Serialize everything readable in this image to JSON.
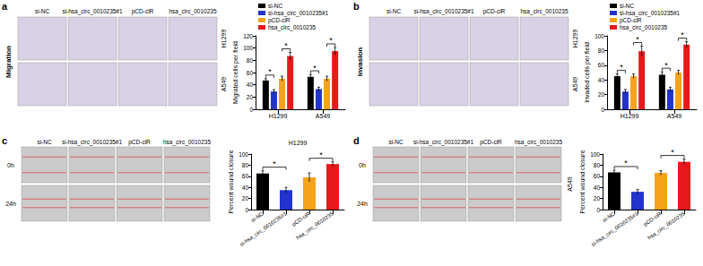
{
  "chart_data": [
    {
      "type": "bar",
      "y_label": "Migrated cells per field",
      "categories": [
        "H1299",
        "A549"
      ],
      "series": [
        {
          "name": "si-NC",
          "color": "#000000",
          "values": [
            47,
            53
          ],
          "errors": [
            3,
            4
          ]
        },
        {
          "name": "si-hsa_circ_0010235#1",
          "color": "#2233cc",
          "values": [
            29,
            33
          ],
          "errors": [
            3,
            3
          ]
        },
        {
          "name": "pCD-ciR",
          "color": "#f5a31a",
          "values": [
            50,
            50
          ],
          "errors": [
            4,
            4
          ]
        },
        {
          "name": "hsa_circ_0010235",
          "color": "#e8191b",
          "values": [
            87,
            95
          ],
          "errors": [
            6,
            6
          ]
        }
      ],
      "ylim": [
        0,
        120
      ],
      "yticks": [
        0,
        20,
        40,
        60,
        80,
        100,
        120
      ],
      "legend": "top-left",
      "significance": [
        {
          "category": 0,
          "between": [
            0,
            1
          ],
          "label": "*"
        },
        {
          "category": 0,
          "between": [
            2,
            3
          ],
          "label": "*"
        },
        {
          "category": 1,
          "between": [
            0,
            1
          ],
          "label": "*"
        },
        {
          "category": 1,
          "between": [
            2,
            3
          ],
          "label": "*"
        }
      ]
    },
    {
      "type": "bar",
      "y_label": "Invaded cells per field",
      "categories": [
        "H1299",
        "A549"
      ],
      "series": [
        {
          "name": "si-NC",
          "color": "#000000",
          "values": [
            45,
            47
          ],
          "errors": [
            3,
            4
          ]
        },
        {
          "name": "si-hsa_circ_0010235#1",
          "color": "#2233cc",
          "values": [
            24,
            27
          ],
          "errors": [
            3,
            3
          ]
        },
        {
          "name": "pCD-ciR",
          "color": "#f5a31a",
          "values": [
            45,
            50
          ],
          "errors": [
            3,
            3
          ]
        },
        {
          "name": "hsa_circ_0010235",
          "color": "#e8191b",
          "values": [
            79,
            88
          ],
          "errors": [
            7,
            4
          ]
        }
      ],
      "ylim": [
        0,
        100
      ],
      "yticks": [
        0,
        20,
        40,
        60,
        80,
        100
      ],
      "legend": "top-left",
      "significance": [
        {
          "category": 0,
          "between": [
            0,
            1
          ],
          "label": "*"
        },
        {
          "category": 0,
          "between": [
            2,
            3
          ],
          "label": "*"
        },
        {
          "category": 1,
          "between": [
            0,
            1
          ],
          "label": "*"
        },
        {
          "category": 1,
          "between": [
            2,
            3
          ],
          "label": "*"
        }
      ]
    },
    {
      "type": "bar",
      "title": "H1299",
      "y_label": "Percent wound closure",
      "categories": [
        "si-NC",
        "si-hsa_circ_0010235#1",
        "pCD-ciR",
        "hsa_circ_0010235"
      ],
      "values": [
        65,
        35,
        58,
        82
      ],
      "errors": [
        5,
        5,
        8,
        4
      ],
      "colors": [
        "#000000",
        "#2233cc",
        "#f5a31a",
        "#e8191b"
      ],
      "ylim": [
        0,
        100
      ],
      "yticks": [
        0,
        20,
        40,
        60,
        80,
        100
      ],
      "significance": [
        {
          "between": [
            0,
            1
          ],
          "label": "*"
        },
        {
          "between": [
            2,
            3
          ],
          "label": "*"
        }
      ]
    },
    {
      "type": "bar",
      "y_label": "Percent wound closure",
      "categories": [
        "si-NC",
        "si-hsa_circ_0010235#1",
        "pCD-ciR",
        "hsa_circ_0010235"
      ],
      "values": [
        67,
        32,
        66,
        86
      ],
      "errors": [
        4,
        4,
        4,
        5
      ],
      "colors": [
        "#000000",
        "#2233cc",
        "#f5a31a",
        "#e8191b"
      ],
      "ylim": [
        0,
        100
      ],
      "yticks": [
        0,
        20,
        40,
        60,
        80,
        100
      ],
      "significance": [
        {
          "between": [
            0,
            1
          ],
          "label": "*"
        },
        {
          "between": [
            2,
            3
          ],
          "label": "*"
        }
      ]
    }
  ],
  "image_panels": [
    {
      "panel": "a",
      "side_label": "Migration",
      "columns": [
        "si-NC",
        "si-hsa_circ_0010235#1",
        "pCD-ciR",
        "hsa_circ_0010235"
      ],
      "rows": [
        "H1299",
        "A549"
      ]
    },
    {
      "panel": "b",
      "side_label": "Invasion",
      "columns": [
        "si-NC",
        "si-hsa_circ_0010235#1",
        "pCD-ciR",
        "hsa_circ_0010235"
      ],
      "rows": [
        "H1299",
        "A549"
      ]
    },
    {
      "panel": "c",
      "columns": [
        "si-NC",
        "si-hsa_circ_0010235#1",
        "pCD-ciR",
        "hsa_circ_0010235"
      ],
      "rows": [
        "0h",
        "24h"
      ]
    },
    {
      "panel": "d",
      "row_group_label": "A549",
      "columns": [
        "si-NC",
        "si-hsa_circ_0010235#1",
        "pCD-ciR",
        "hsa_circ_0010235"
      ],
      "rows": [
        "0h",
        "24h"
      ]
    }
  ]
}
